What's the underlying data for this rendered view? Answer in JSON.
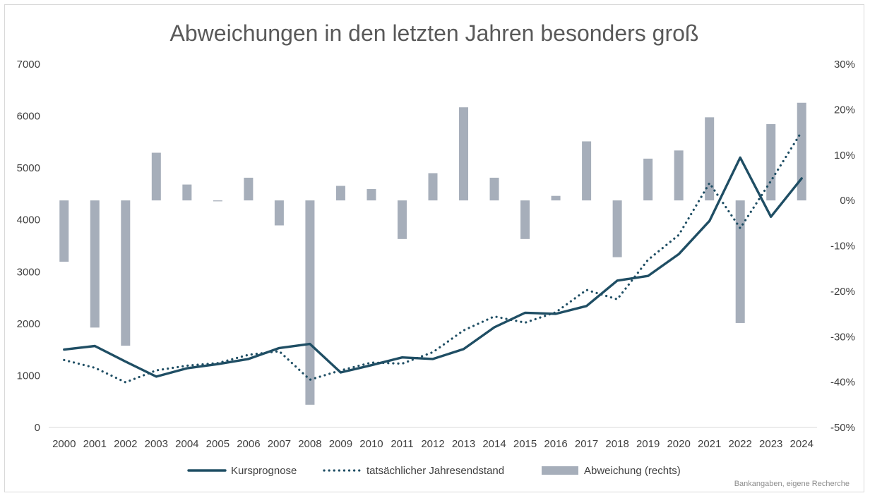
{
  "chart_data": {
    "type": "bar",
    "title": "Abweichungen in den letzten Jahren besonders groß",
    "source": "Bankangaben, eigene Recherche",
    "categories": [
      "2000",
      "2001",
      "2002",
      "2003",
      "2004",
      "2005",
      "2006",
      "2007",
      "2008",
      "2009",
      "2010",
      "2011",
      "2012",
      "2013",
      "2014",
      "2015",
      "2016",
      "2017",
      "2018",
      "2019",
      "2020",
      "2021",
      "2022",
      "2023",
      "2024"
    ],
    "y_left": {
      "min": 0,
      "max": 7000,
      "ticks": [
        0,
        1000,
        2000,
        3000,
        4000,
        5000,
        6000,
        7000
      ],
      "tick_labels": [
        "0",
        "1000",
        "2000",
        "3000",
        "4000",
        "5000",
        "6000",
        "7000"
      ]
    },
    "y_right": {
      "min": -50,
      "max": 30,
      "ticks": [
        -50,
        -40,
        -30,
        -20,
        -10,
        0,
        10,
        20,
        30
      ],
      "tick_labels": [
        "-50%",
        "-40%",
        "-30%",
        "-20%",
        "-10%",
        "0%",
        "10%",
        "20%",
        "30%"
      ]
    },
    "grid": false,
    "legend_position": "bottom",
    "colors": {
      "kursprognose": "#1f4e64",
      "jahresendstand": "#1f4e64",
      "abweichung": "#a6aeba",
      "text": "#404040",
      "title": "#595959"
    },
    "series": [
      {
        "name": "Kursprognose",
        "type": "line",
        "style": "solid",
        "axis": "left",
        "values": [
          1500,
          1570,
          1270,
          980,
          1140,
          1220,
          1320,
          1530,
          1610,
          1060,
          1200,
          1350,
          1320,
          1510,
          1930,
          2210,
          2190,
          2340,
          2830,
          2920,
          3340,
          3980,
          5200,
          4060,
          4800
        ]
      },
      {
        "name": "tatsächlicher Jahresendstand",
        "type": "line",
        "style": "dotted",
        "axis": "left",
        "values": [
          1300,
          1150,
          870,
          1100,
          1190,
          1240,
          1400,
          1470,
          920,
          1100,
          1250,
          1230,
          1450,
          1870,
          2140,
          2020,
          2220,
          2650,
          2470,
          3230,
          3710,
          4710,
          3840,
          4750,
          5700
        ]
      },
      {
        "name": "Abweichung (rechts)",
        "type": "bar",
        "axis": "right",
        "values": [
          -13.5,
          -28,
          -32,
          10.5,
          3.5,
          -0.2,
          5,
          -5.5,
          -45,
          3.2,
          2.5,
          -8.5,
          6,
          20.5,
          5,
          -8.5,
          1,
          13,
          -12.5,
          9.2,
          11,
          18.3,
          -27,
          16.8,
          21.5
        ]
      }
    ]
  }
}
